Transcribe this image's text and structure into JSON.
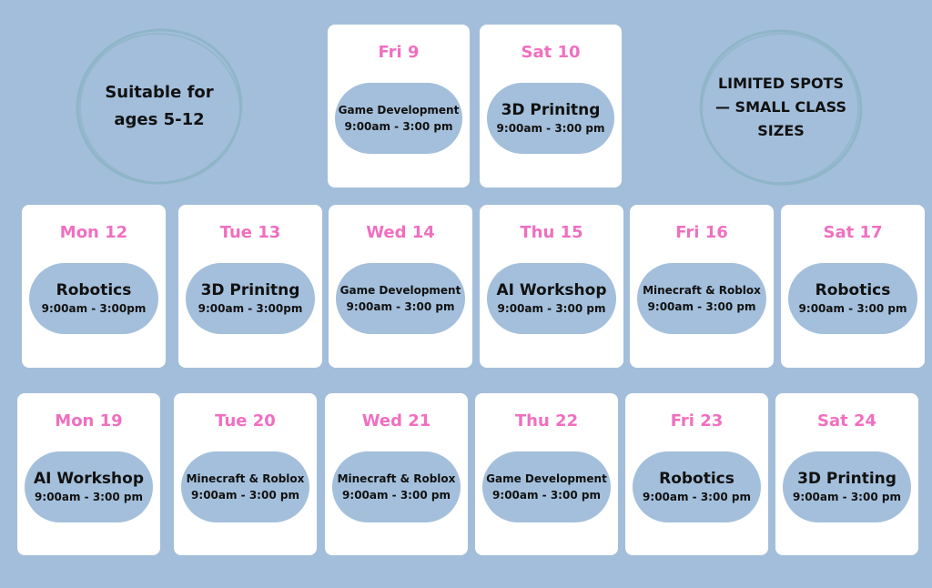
{
  "colors": {
    "background": "#a3bedb",
    "card": "#ffffff",
    "pill": "#a3bfdb",
    "day_label": "#f06fc0",
    "circle": "#8fb5c8"
  },
  "badges": {
    "ages": "Suitable for ages 5-12",
    "spots": "LIMITED SPOTS — SMALL CLASS SIZES"
  },
  "rows": [
    [
      {
        "day": "Fri 9",
        "title": "Game Development",
        "time": "9:00am - 3:00 pm"
      },
      {
        "day": "Sat 10",
        "title": "3D Prinitng",
        "time": "9:00am - 3:00 pm"
      }
    ],
    [
      {
        "day": "Mon 12",
        "title": "Robotics",
        "time": "9:00am - 3:00pm"
      },
      {
        "day": "Tue 13",
        "title": "3D Prinitng",
        "time": "9:00am - 3:00pm"
      },
      {
        "day": "Wed 14",
        "title": "Game Development",
        "time": "9:00am - 3:00 pm"
      },
      {
        "day": "Thu 15",
        "title": "AI Workshop",
        "time": "9:00am - 3:00 pm"
      },
      {
        "day": "Fri 16",
        "title": "Minecraft & Roblox",
        "time": "9:00am - 3:00 pm"
      },
      {
        "day": "Sat 17",
        "title": "Robotics",
        "time": "9:00am - 3:00 pm"
      }
    ],
    [
      {
        "day": "Mon 19",
        "title": "AI Workshop",
        "time": "9:00am - 3:00 pm"
      },
      {
        "day": "Tue 20",
        "title": "Minecraft & Roblox",
        "time": "9:00am - 3:00 pm"
      },
      {
        "day": "Wed 21",
        "title": "Minecraft & Roblox",
        "time": "9:00am - 3:00 pm"
      },
      {
        "day": "Thu 22",
        "title": "Game Development",
        "time": "9:00am - 3:00 pm"
      },
      {
        "day": "Fri 23",
        "title": "Robotics",
        "time": "9:00am - 3:00 pm"
      },
      {
        "day": "Sat 24",
        "title": "3D Printing",
        "time": "9:00am - 3:00 pm"
      }
    ]
  ]
}
